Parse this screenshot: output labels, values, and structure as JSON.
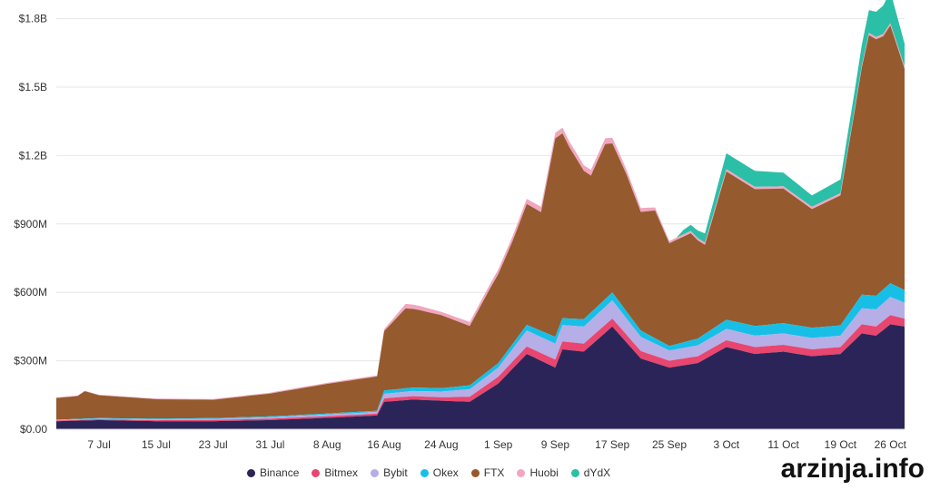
{
  "watermark": "arzinja.info",
  "chart_data": {
    "type": "area",
    "stacked": true,
    "title": "",
    "xlabel": "",
    "ylabel": "",
    "ylim": [
      0,
      1850000000
    ],
    "y_ticks": [
      {
        "value": 0,
        "label": "$0.00"
      },
      {
        "value": 300000000,
        "label": "$300M"
      },
      {
        "value": 600000000,
        "label": "$600M"
      },
      {
        "value": 900000000,
        "label": "$900M"
      },
      {
        "value": 1200000000,
        "label": "$1.2B"
      },
      {
        "value": 1500000000,
        "label": "$1.5B"
      },
      {
        "value": 1800000000,
        "label": "$1.8B"
      }
    ],
    "x_range": [
      "2021-07-01",
      "2021-10-28"
    ],
    "x_ticks": [
      {
        "date": "2021-07-07",
        "label": "7 Jul"
      },
      {
        "date": "2021-07-15",
        "label": "15 Jul"
      },
      {
        "date": "2021-07-23",
        "label": "23 Jul"
      },
      {
        "date": "2021-07-31",
        "label": "31 Jul"
      },
      {
        "date": "2021-08-08",
        "label": "8 Aug"
      },
      {
        "date": "2021-08-16",
        "label": "16 Aug"
      },
      {
        "date": "2021-08-24",
        "label": "24 Aug"
      },
      {
        "date": "2021-09-01",
        "label": "1 Sep"
      },
      {
        "date": "2021-09-09",
        "label": "9 Sep"
      },
      {
        "date": "2021-09-17",
        "label": "17 Sep"
      },
      {
        "date": "2021-09-25",
        "label": "25 Sep"
      },
      {
        "date": "2021-10-03",
        "label": "3 Oct"
      },
      {
        "date": "2021-10-11",
        "label": "11 Oct"
      },
      {
        "date": "2021-10-19",
        "label": "19 Oct"
      },
      {
        "date": "2021-10-26",
        "label": "26 Oct"
      }
    ],
    "legend_position": "bottom",
    "series": [
      {
        "name": "Binance",
        "color": "#2b2458",
        "points": [
          [
            "2021-07-01",
            35000000
          ],
          [
            "2021-07-07",
            40000000
          ],
          [
            "2021-07-15",
            35000000
          ],
          [
            "2021-07-23",
            35000000
          ],
          [
            "2021-07-31",
            40000000
          ],
          [
            "2021-08-08",
            50000000
          ],
          [
            "2021-08-15",
            60000000
          ],
          [
            "2021-08-16",
            120000000
          ],
          [
            "2021-08-20",
            130000000
          ],
          [
            "2021-08-24",
            125000000
          ],
          [
            "2021-08-28",
            120000000
          ],
          [
            "2021-09-01",
            200000000
          ],
          [
            "2021-09-05",
            330000000
          ],
          [
            "2021-09-09",
            270000000
          ],
          [
            "2021-09-10",
            350000000
          ],
          [
            "2021-09-13",
            340000000
          ],
          [
            "2021-09-17",
            450000000
          ],
          [
            "2021-09-21",
            310000000
          ],
          [
            "2021-09-25",
            270000000
          ],
          [
            "2021-09-29",
            290000000
          ],
          [
            "2021-10-03",
            360000000
          ],
          [
            "2021-10-07",
            330000000
          ],
          [
            "2021-10-11",
            340000000
          ],
          [
            "2021-10-15",
            320000000
          ],
          [
            "2021-10-19",
            330000000
          ],
          [
            "2021-10-22",
            420000000
          ],
          [
            "2021-10-24",
            410000000
          ],
          [
            "2021-10-26",
            460000000
          ],
          [
            "2021-10-28",
            450000000
          ]
        ]
      },
      {
        "name": "Bitmex",
        "color": "#e8456f",
        "points": [
          [
            "2021-07-01",
            3000000
          ],
          [
            "2021-08-15",
            8000000
          ],
          [
            "2021-08-16",
            15000000
          ],
          [
            "2021-08-24",
            15000000
          ],
          [
            "2021-09-01",
            30000000
          ],
          [
            "2021-09-09",
            35000000
          ],
          [
            "2021-09-17",
            35000000
          ],
          [
            "2021-09-25",
            30000000
          ],
          [
            "2021-10-03",
            30000000
          ],
          [
            "2021-10-11",
            30000000
          ],
          [
            "2021-10-19",
            30000000
          ],
          [
            "2021-10-22",
            40000000
          ],
          [
            "2021-10-26",
            40000000
          ],
          [
            "2021-10-28",
            35000000
          ]
        ]
      },
      {
        "name": "Bybit",
        "color": "#b6aee6",
        "points": [
          [
            "2021-07-01",
            2000000
          ],
          [
            "2021-08-15",
            8000000
          ],
          [
            "2021-08-16",
            20000000
          ],
          [
            "2021-08-24",
            25000000
          ],
          [
            "2021-09-01",
            40000000
          ],
          [
            "2021-09-05",
            70000000
          ],
          [
            "2021-09-09",
            70000000
          ],
          [
            "2021-09-17",
            80000000
          ],
          [
            "2021-09-25",
            45000000
          ],
          [
            "2021-10-03",
            50000000
          ],
          [
            "2021-10-11",
            50000000
          ],
          [
            "2021-10-19",
            50000000
          ],
          [
            "2021-10-22",
            70000000
          ],
          [
            "2021-10-26",
            80000000
          ],
          [
            "2021-10-28",
            70000000
          ]
        ]
      },
      {
        "name": "Okex",
        "color": "#17bfe6",
        "points": [
          [
            "2021-07-01",
            2000000
          ],
          [
            "2021-08-15",
            5000000
          ],
          [
            "2021-08-16",
            15000000
          ],
          [
            "2021-08-24",
            15000000
          ],
          [
            "2021-09-01",
            20000000
          ],
          [
            "2021-09-09",
            30000000
          ],
          [
            "2021-09-17",
            35000000
          ],
          [
            "2021-09-25",
            20000000
          ],
          [
            "2021-10-03",
            40000000
          ],
          [
            "2021-10-11",
            45000000
          ],
          [
            "2021-10-19",
            45000000
          ],
          [
            "2021-10-22",
            60000000
          ],
          [
            "2021-10-26",
            60000000
          ],
          [
            "2021-10-28",
            55000000
          ]
        ]
      },
      {
        "name": "FTX",
        "color": "#955a2d",
        "points": [
          [
            "2021-07-01",
            95000000
          ],
          [
            "2021-07-04",
            100000000
          ],
          [
            "2021-07-05",
            120000000
          ],
          [
            "2021-07-07",
            100000000
          ],
          [
            "2021-07-15",
            85000000
          ],
          [
            "2021-07-23",
            80000000
          ],
          [
            "2021-07-31",
            100000000
          ],
          [
            "2021-08-08",
            130000000
          ],
          [
            "2021-08-15",
            150000000
          ],
          [
            "2021-08-16",
            260000000
          ],
          [
            "2021-08-19",
            350000000
          ],
          [
            "2021-08-21",
            340000000
          ],
          [
            "2021-08-24",
            320000000
          ],
          [
            "2021-08-28",
            260000000
          ],
          [
            "2021-08-31",
            360000000
          ],
          [
            "2021-09-01",
            390000000
          ],
          [
            "2021-09-03",
            450000000
          ],
          [
            "2021-09-05",
            530000000
          ],
          [
            "2021-09-07",
            520000000
          ],
          [
            "2021-09-09",
            870000000
          ],
          [
            "2021-09-11",
            750000000
          ],
          [
            "2021-09-14",
            600000000
          ],
          [
            "2021-09-16",
            680000000
          ],
          [
            "2021-09-19",
            600000000
          ],
          [
            "2021-09-21",
            520000000
          ],
          [
            "2021-09-23",
            560000000
          ],
          [
            "2021-09-25",
            450000000
          ],
          [
            "2021-09-28",
            470000000
          ],
          [
            "2021-09-30",
            390000000
          ],
          [
            "2021-10-03",
            650000000
          ],
          [
            "2021-10-07",
            600000000
          ],
          [
            "2021-10-11",
            590000000
          ],
          [
            "2021-10-15",
            520000000
          ],
          [
            "2021-10-19",
            570000000
          ],
          [
            "2021-10-21",
            850000000
          ],
          [
            "2021-10-23",
            1140000000
          ],
          [
            "2021-10-25",
            1110000000
          ],
          [
            "2021-10-26",
            1130000000
          ],
          [
            "2021-10-28",
            970000000
          ]
        ]
      },
      {
        "name": "Huobi",
        "color": "#f2a6c0",
        "points": [
          [
            "2021-07-01",
            2000000
          ],
          [
            "2021-08-15",
            5000000
          ],
          [
            "2021-08-19",
            20000000
          ],
          [
            "2021-08-24",
            15000000
          ],
          [
            "2021-09-01",
            20000000
          ],
          [
            "2021-09-09",
            25000000
          ],
          [
            "2021-09-17",
            25000000
          ],
          [
            "2021-09-25",
            10000000
          ],
          [
            "2021-10-03",
            10000000
          ],
          [
            "2021-10-11",
            10000000
          ],
          [
            "2021-10-19",
            10000000
          ],
          [
            "2021-10-28",
            10000000
          ]
        ]
      },
      {
        "name": "dYdX",
        "color": "#2bbfa8",
        "points": [
          [
            "2021-07-01",
            0
          ],
          [
            "2021-09-26",
            0
          ],
          [
            "2021-09-27",
            20000000
          ],
          [
            "2021-09-30",
            40000000
          ],
          [
            "2021-10-03",
            70000000
          ],
          [
            "2021-10-07",
            70000000
          ],
          [
            "2021-10-11",
            60000000
          ],
          [
            "2021-10-15",
            50000000
          ],
          [
            "2021-10-19",
            60000000
          ],
          [
            "2021-10-22",
            90000000
          ],
          [
            "2021-10-24",
            110000000
          ],
          [
            "2021-10-26",
            140000000
          ],
          [
            "2021-10-28",
            100000000
          ]
        ]
      }
    ]
  }
}
